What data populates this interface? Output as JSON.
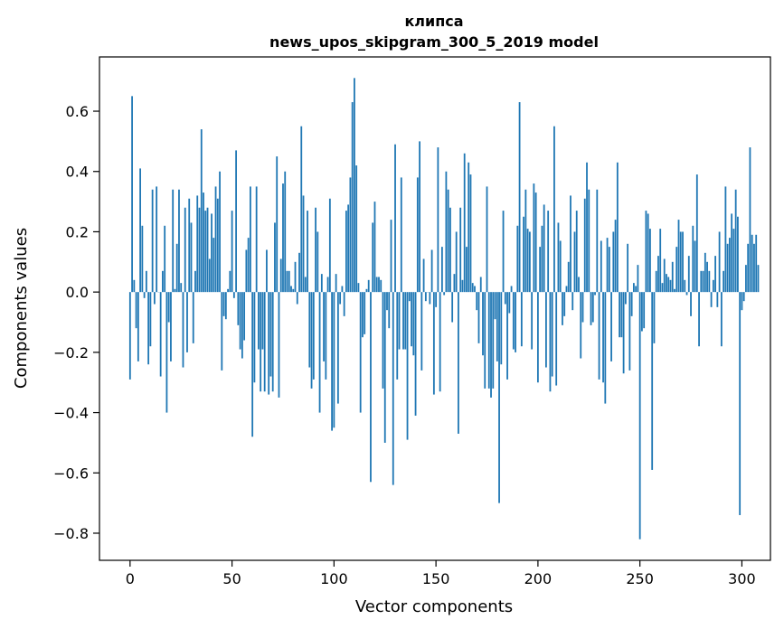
{
  "chart_data": {
    "type": "bar",
    "title": [
      "клипса",
      "news_upos_skipgram_300_5_2019 model"
    ],
    "xlabel": "Vector components",
    "ylabel": "Components values",
    "xlim": [
      -15,
      314
    ],
    "ylim": [
      -0.89,
      0.78
    ],
    "xticks": [
      0,
      50,
      100,
      150,
      200,
      250,
      300
    ],
    "yticks": [
      -0.8,
      -0.6,
      -0.4,
      -0.2,
      0.0,
      0.2,
      0.4,
      0.6
    ],
    "ytick_labels": [
      "−0.8",
      "−0.6",
      "−0.4",
      "−0.2",
      "0.0",
      "0.2",
      "0.4",
      "0.6"
    ],
    "bar_color": "#1f77b4",
    "grid": false,
    "values": [
      -0.29,
      0.65,
      0.04,
      -0.12,
      -0.23,
      0.41,
      0.22,
      -0.02,
      0.07,
      -0.24,
      -0.18,
      0.34,
      -0.04,
      0.35,
      0.0,
      -0.28,
      0.07,
      0.22,
      -0.4,
      -0.1,
      -0.23,
      0.34,
      0.01,
      0.16,
      0.34,
      0.03,
      -0.25,
      0.28,
      -0.2,
      0.31,
      0.23,
      -0.17,
      0.07,
      0.32,
      0.28,
      0.54,
      0.33,
      0.27,
      0.28,
      0.11,
      0.26,
      0.18,
      0.35,
      0.31,
      0.4,
      -0.26,
      -0.08,
      -0.09,
      0.01,
      0.07,
      0.27,
      -0.02,
      0.47,
      -0.11,
      -0.19,
      -0.22,
      -0.16,
      0.14,
      0.18,
      0.35,
      -0.48,
      -0.3,
      0.35,
      -0.19,
      -0.33,
      -0.19,
      -0.33,
      0.14,
      -0.34,
      -0.28,
      -0.33,
      0.23,
      0.45,
      -0.35,
      0.11,
      0.36,
      0.4,
      0.07,
      0.07,
      0.02,
      0.01,
      0.1,
      -0.04,
      0.13,
      0.55,
      0.32,
      0.05,
      0.27,
      -0.25,
      -0.32,
      -0.29,
      0.28,
      0.2,
      -0.4,
      0.06,
      -0.23,
      -0.29,
      0.05,
      0.31,
      -0.46,
      -0.45,
      0.06,
      -0.37,
      -0.04,
      0.02,
      -0.08,
      0.27,
      0.29,
      0.38,
      0.63,
      0.71,
      0.42,
      0.03,
      -0.4,
      -0.15,
      -0.14,
      0.01,
      0.04,
      -0.63,
      0.23,
      0.3,
      0.05,
      0.05,
      0.04,
      -0.32,
      -0.5,
      -0.06,
      -0.12,
      0.24,
      -0.64,
      0.49,
      -0.29,
      -0.19,
      0.38,
      -0.19,
      -0.19,
      -0.49,
      -0.03,
      -0.18,
      -0.21,
      -0.41,
      0.38,
      0.5,
      -0.26,
      0.11,
      -0.03,
      0.0,
      -0.04,
      0.14,
      -0.34,
      -0.05,
      0.48,
      -0.33,
      0.15,
      -0.01,
      0.4,
      0.34,
      0.28,
      -0.1,
      0.06,
      0.2,
      -0.47,
      0.28,
      0.04,
      0.46,
      0.15,
      0.43,
      0.39,
      0.03,
      0.02,
      -0.06,
      -0.17,
      0.05,
      -0.21,
      -0.32,
      0.35,
      -0.32,
      -0.35,
      -0.32,
      -0.09,
      -0.23,
      -0.7,
      -0.24,
      0.27,
      -0.04,
      -0.29,
      -0.07,
      0.02,
      -0.19,
      -0.2,
      0.22,
      0.63,
      -0.18,
      0.25,
      0.34,
      0.21,
      0.2,
      -0.19,
      0.36,
      0.33,
      -0.3,
      0.15,
      0.22,
      0.29,
      -0.25,
      0.27,
      -0.33,
      -0.28,
      0.55,
      -0.31,
      0.23,
      0.17,
      -0.11,
      -0.08,
      0.02,
      0.1,
      0.32,
      -0.06,
      0.2,
      0.27,
      0.05,
      -0.22,
      -0.1,
      0.31,
      0.43,
      0.34,
      -0.11,
      -0.1,
      -0.01,
      0.34,
      -0.29,
      0.17,
      -0.3,
      -0.37,
      0.18,
      0.15,
      -0.23,
      0.2,
      0.24,
      0.43,
      -0.15,
      -0.15,
      -0.27,
      -0.04,
      0.16,
      -0.26,
      -0.08,
      0.03,
      0.02,
      0.09,
      -0.82,
      -0.13,
      -0.12,
      0.27,
      0.26,
      0.21,
      -0.59,
      -0.17,
      0.07,
      0.12,
      0.21,
      0.03,
      0.11,
      0.06,
      0.05,
      0.04,
      0.1,
      0.01,
      0.15,
      0.24,
      0.2,
      0.2,
      0.04,
      -0.01,
      0.12,
      -0.08,
      0.22,
      0.17,
      0.39,
      -0.18,
      0.07,
      0.07,
      0.13,
      0.1,
      0.07,
      -0.05,
      0.04,
      0.12,
      -0.05,
      0.2,
      -0.18,
      0.07,
      0.35,
      0.16,
      0.18,
      0.26,
      0.21,
      0.34,
      0.25,
      -0.74,
      -0.06,
      -0.03,
      0.09,
      0.16,
      0.48,
      0.19,
      0.16,
      0.19,
      0.09
    ]
  }
}
